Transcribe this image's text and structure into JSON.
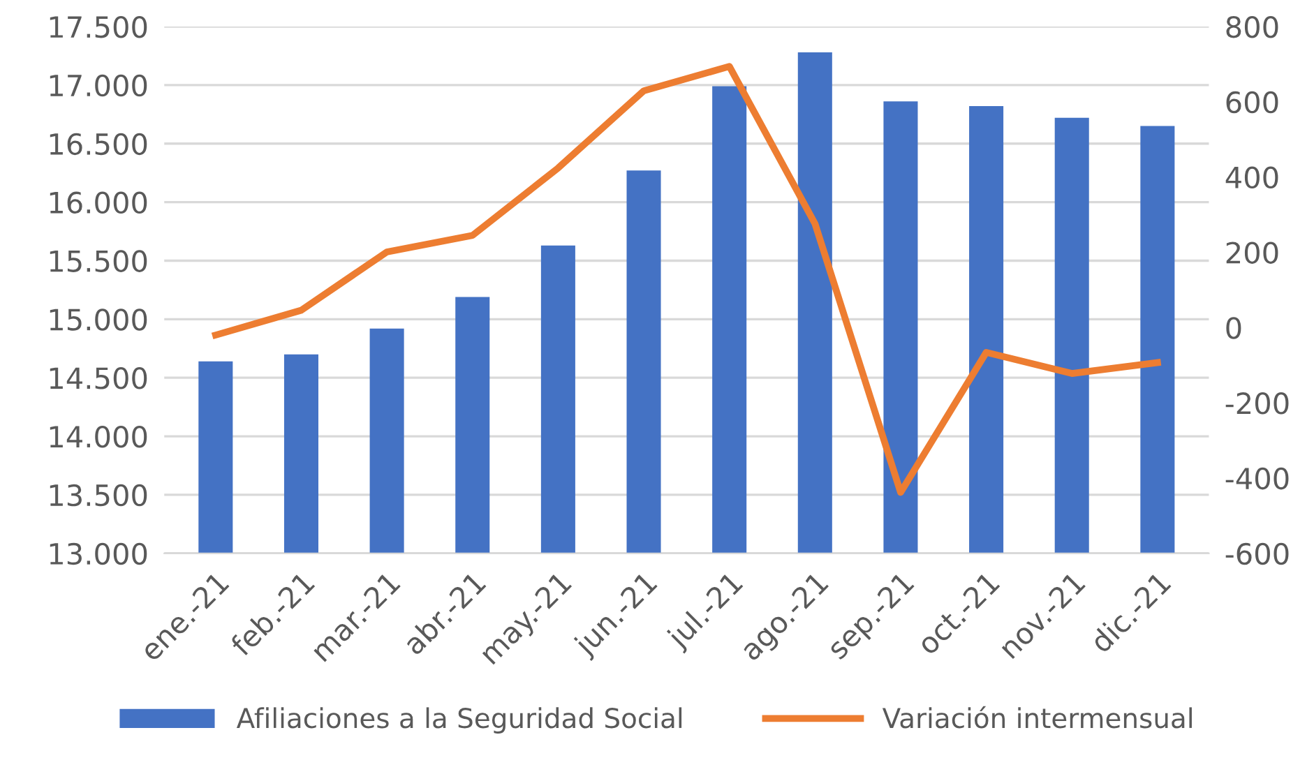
{
  "chart_data": {
    "type": "bar",
    "categories": [
      "ene.-21",
      "feb.-21",
      "mar.-21",
      "abr.-21",
      "may.-21",
      "jun.-21",
      "jul.-21",
      "ago.-21",
      "sep.-21",
      "oct.-21",
      "nov.-21",
      "dic.-21"
    ],
    "series": [
      {
        "name": "Afiliaciones a la Seguridad Social",
        "color": "#4472c4",
        "values": [
          14640,
          14700,
          14920,
          15190,
          15630,
          16270,
          16990,
          17280,
          16860,
          16820,
          16720,
          16650
        ]
      },
      {
        "name": "Variación intermensual",
        "type": "line",
        "axis": "y2",
        "color": "#ed7d31",
        "values": [
          -20,
          46,
          201,
          245,
          424,
          629,
          694,
          276,
          -438,
          -66,
          -122,
          -93
        ]
      }
    ],
    "ylim": [
      13000,
      17500
    ],
    "yticks": [
      {
        "value": 13000,
        "label": "13.000"
      },
      {
        "value": 13500,
        "label": "13.500"
      },
      {
        "value": 14000,
        "label": "14.000"
      },
      {
        "value": 14500,
        "label": "14.500"
      },
      {
        "value": 15000,
        "label": "15.000"
      },
      {
        "value": 15500,
        "label": "15.500"
      },
      {
        "value": 16000,
        "label": "16.000"
      },
      {
        "value": 16500,
        "label": "16.500"
      },
      {
        "value": 17000,
        "label": "17.000"
      },
      {
        "value": 17500,
        "label": "17.500"
      }
    ],
    "y2lim": [
      -600,
      800
    ],
    "y2ticks": [
      -600,
      -400,
      -200,
      0,
      200,
      400,
      600,
      800
    ],
    "grid": "y",
    "legend": "bottom",
    "marker": "none",
    "line_style": "solid"
  }
}
